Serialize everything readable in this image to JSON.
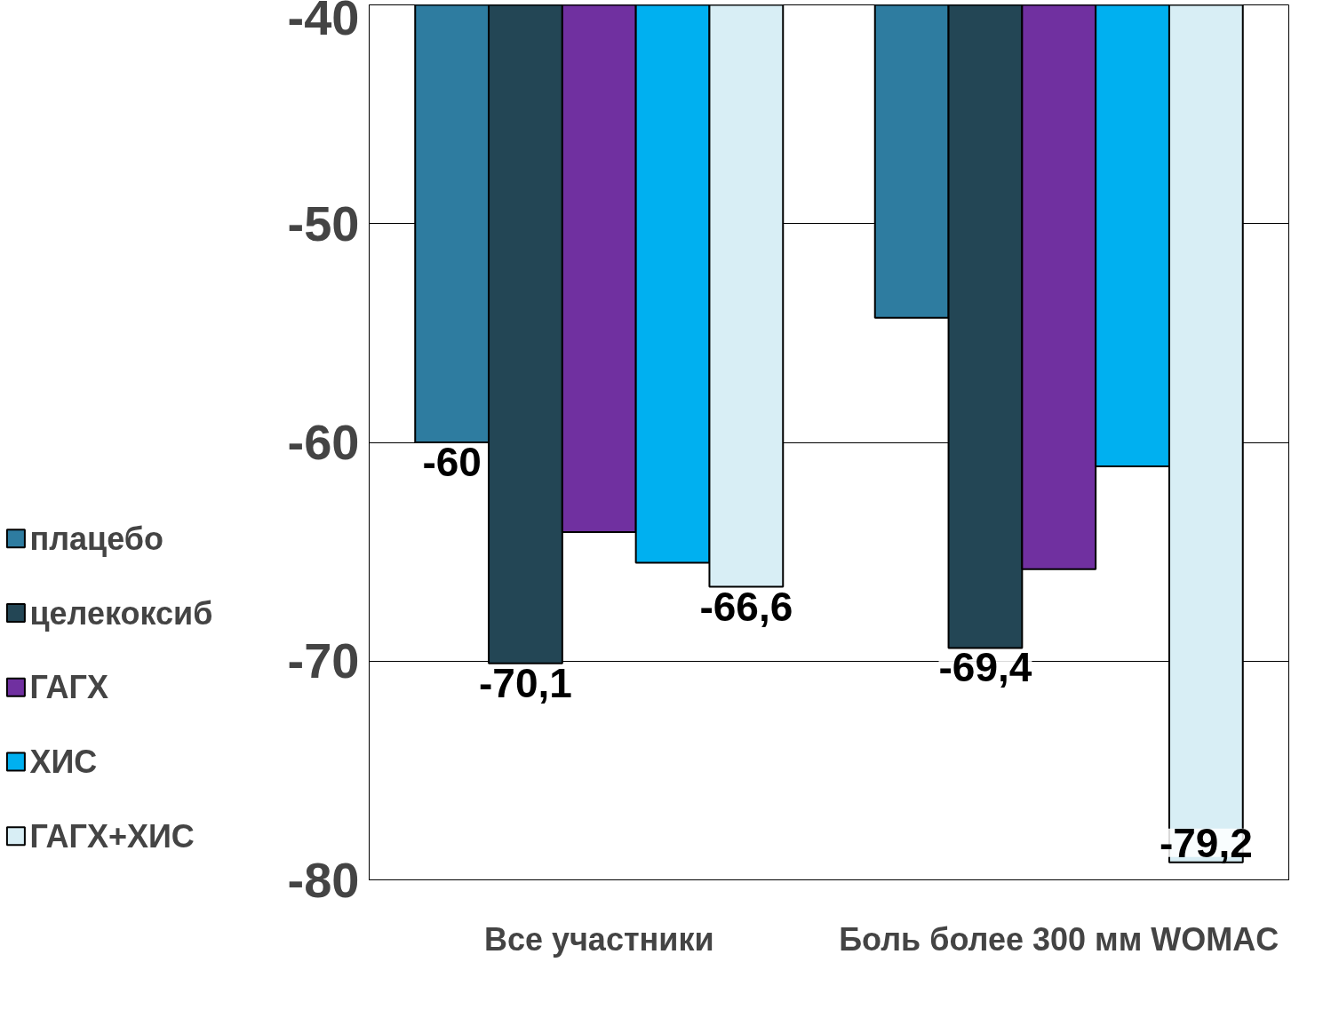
{
  "chart_data": {
    "type": "bar",
    "categories": [
      "Все участники",
      "Боль более 300 мм WOMAC"
    ],
    "series": [
      {
        "name": "плацебо",
        "color": "#2e7ca0",
        "values": [
          -60,
          -54.3
        ],
        "value_labels": [
          "-60",
          null
        ]
      },
      {
        "name": "целекоксиб",
        "color": "#234655",
        "values": [
          -70.1,
          -69.4
        ],
        "value_labels": [
          "-70,1",
          "-69,4"
        ]
      },
      {
        "name": "ГАГХ",
        "color": "#7030a0",
        "values": [
          -64.1,
          -65.8
        ],
        "value_labels": [
          null,
          null
        ]
      },
      {
        "name": "ХИС",
        "color": "#00b0f0",
        "values": [
          -65.5,
          -61.1
        ],
        "value_labels": [
          null,
          null
        ]
      },
      {
        "name": "ГАГХ+ХИС",
        "color": "#d8eef5",
        "values": [
          -66.6,
          -79.2
        ],
        "value_labels": [
          "-66,6",
          "-79,2"
        ]
      }
    ],
    "ylim": [
      -80,
      -40
    ],
    "yticks": [
      -80,
      -70,
      -60,
      -50,
      -40
    ],
    "grid": "y",
    "legend": "left"
  }
}
